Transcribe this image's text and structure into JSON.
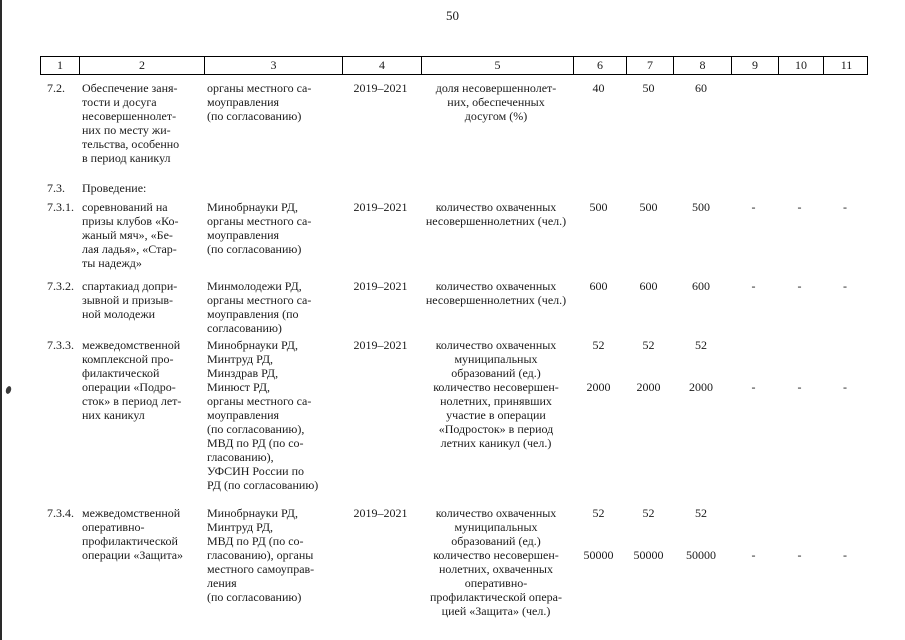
{
  "page_number": "50",
  "colors": {
    "text": "#1a1a1a",
    "background": "#ffffff",
    "border": "#000000"
  },
  "columns": [
    "1",
    "2",
    "3",
    "4",
    "5",
    "6",
    "7",
    "8",
    "9",
    "10",
    "11"
  ],
  "rows": [
    {
      "id": "7.2.",
      "activity": "Обеспечение заня-\nтости и досуга\nнесовершеннолет-\nних по месту жи-\nтельства, особенно\nв период каникул",
      "executors": "органы местного са-\nмоуправления\n(по согласованию)",
      "period": "2019–2021",
      "indicators": [
        {
          "name": "доля несовершеннолет-\nних, обеспеченных\nдосугом (%)",
          "values": [
            "40",
            "50",
            "60",
            "",
            "",
            ""
          ]
        }
      ]
    },
    {
      "id": "7.3.",
      "activity": "Проведение:",
      "executors": "",
      "period": "",
      "indicators": []
    },
    {
      "id": "7.3.1.",
      "activity": "соревнований на\nпризы клубов «Ко-\nжаный мяч», «Бе-\nлая ладья», «Стар-\nты надежд»",
      "executors": "Минобрнауки РД,\nорганы местного са-\nмоуправления\n(по согласованию)",
      "period": "2019–2021",
      "indicators": [
        {
          "name": "количество охваченных\nнесовершеннолетних (чел.)",
          "values": [
            "500",
            "500",
            "500",
            "-",
            "-",
            "-"
          ]
        }
      ]
    },
    {
      "id": "7.3.2.",
      "activity": "спартакиад допри-\nзывной и призыв-\nной молодежи",
      "executors": "Минмолодежи РД,\nорганы местного са-\nмоуправления (по\nсогласованию)",
      "period": "2019–2021",
      "indicators": [
        {
          "name": "количество охваченных\nнесовершеннолетних (чел.)",
          "values": [
            "600",
            "600",
            "600",
            "-",
            "-",
            "-"
          ]
        }
      ]
    },
    {
      "id": "7.3.3.",
      "activity": "межведомственной\nкомплексной про-\nфилактической\nоперации «Подро-\nсток» в период лет-\nних каникул",
      "executors": "Минобрнауки РД,\nМинтруд РД,\nМинздрав РД,\nМинюст РД,\nорганы местного са-\nмоуправления\n(по согласованию),\nМВД по РД (по со-\nгласованию),\nУФСИН России по\nРД (по согласованию)",
      "period": "2019–2021",
      "indicators": [
        {
          "name": "количество охваченных\nмуниципальных\nобразований (ед.)",
          "values": [
            "52",
            "52",
            "52",
            "",
            "",
            ""
          ]
        },
        {
          "name": "количество несовершен-\nнолетних, принявших\nучастие в операции\n«Подросток» в период\nлетних каникул (чел.)",
          "values": [
            "2000",
            "2000",
            "2000",
            "-",
            "-",
            "-"
          ]
        }
      ]
    },
    {
      "id": "7.3.4.",
      "activity": "межведомственной\nоперативно-\nпрофилактической\nоперации «Защита»",
      "executors": "Минобрнауки РД,\nМинтруд РД,\nМВД по РД (по со-\nгласованию), органы\nместного самоуправ-\nления\n(по согласованию)",
      "period": "2019–2021",
      "indicators": [
        {
          "name": "количество охваченных\nмуниципальных\nобразований (ед.)",
          "values": [
            "52",
            "52",
            "52",
            "",
            "",
            ""
          ]
        },
        {
          "name": "количество несовершен-\nнолетних, охваченных\nоперативно-\nпрофилактической опера-\nцией «Защита» (чел.)",
          "values": [
            "50000",
            "50000",
            "50000",
            "-",
            "-",
            "-"
          ]
        }
      ]
    }
  ]
}
